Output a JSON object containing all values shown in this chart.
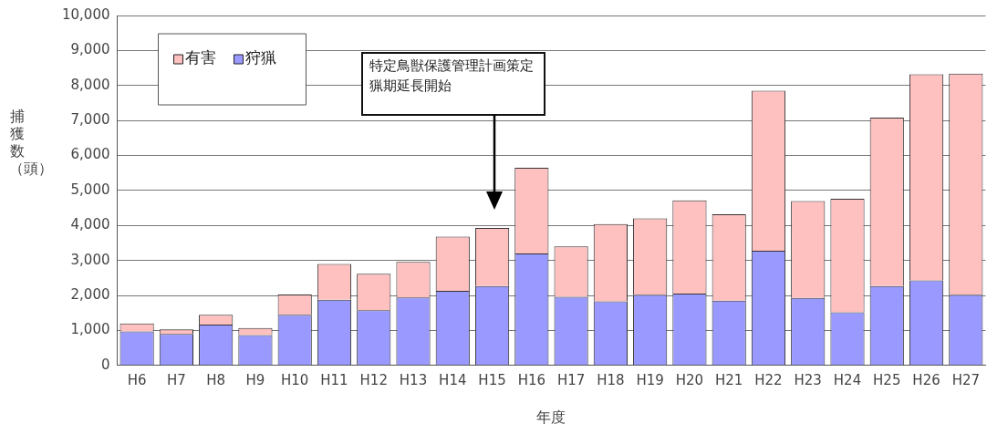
{
  "chart_data": {
    "type": "bar",
    "xlabel": "年度",
    "ylabel": "捕獲数（頭）",
    "categories": [
      "H6",
      "H7",
      "H8",
      "H9",
      "H10",
      "H11",
      "H12",
      "H13",
      "H14",
      "H15",
      "H16",
      "H17",
      "H18",
      "H19",
      "H20",
      "H21",
      "H22",
      "H23",
      "H24",
      "H25",
      "H26",
      "H27"
    ],
    "stacked": true,
    "series": [
      {
        "name": "狩猟",
        "color": "#9999ff",
        "values": [
          970,
          900,
          1170,
          870,
          1450,
          1880,
          1580,
          1940,
          2130,
          2270,
          3200,
          1960,
          1830,
          2020,
          2050,
          1850,
          3280,
          1930,
          1520,
          2270,
          2430,
          2020
        ]
      },
      {
        "name": "有害",
        "color": "#ffc0c0",
        "values": [
          230,
          130,
          280,
          200,
          580,
          1020,
          1040,
          1020,
          1550,
          1660,
          2450,
          1440,
          2210,
          2180,
          2670,
          2470,
          4570,
          2770,
          3240,
          4810,
          5890,
          6320
        ]
      }
    ],
    "ylim": [
      0,
      10000
    ],
    "yticks": [
      0,
      {
        "value": 1000,
        "label": "1,000"
      },
      {
        "value": 2000,
        "label": "2,000"
      },
      {
        "value": 3000,
        "label": "3,000"
      },
      {
        "value": 4000,
        "label": "4,000"
      },
      {
        "value": 5000,
        "label": "5,000"
      },
      {
        "value": 6000,
        "label": "6,000"
      },
      {
        "value": 7000,
        "label": "7,000"
      },
      {
        "value": 8000,
        "label": "8,000"
      },
      {
        "value": 9000,
        "label": "9,000"
      },
      {
        "value": 10000,
        "label": "10,000"
      }
    ],
    "grid": "y",
    "legend": "top left",
    "annotations": [
      "特定鳥獣保護管理計画策定猟期延長開始"
    ]
  }
}
